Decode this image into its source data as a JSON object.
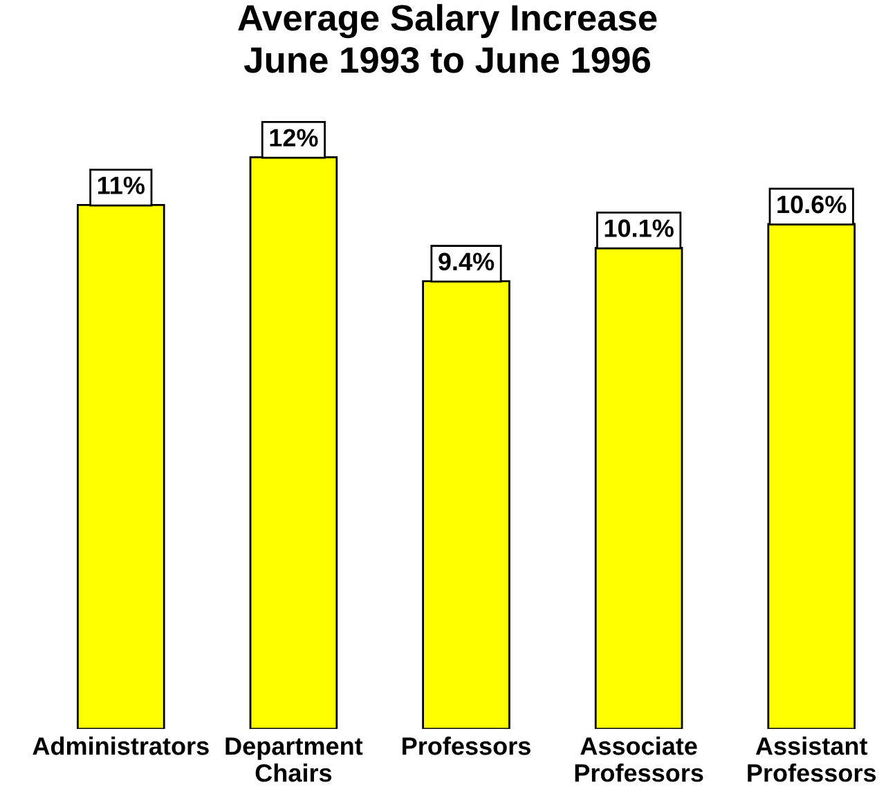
{
  "chart_data": {
    "type": "bar",
    "title": "Average Salary Increase\nJune 1993 to June 1996",
    "categories": [
      "Administrators",
      "Department\nChairs",
      "Professors",
      "Associate\nProfessors",
      "Assistant\nProfessors"
    ],
    "values": [
      11,
      12,
      9.4,
      10.1,
      10.6
    ],
    "color": "#ffff00",
    "value_labels": [
      "11%",
      "12%",
      "9.4%",
      "10.1%",
      "10.6%"
    ],
    "grid": false,
    "legend": false
  }
}
